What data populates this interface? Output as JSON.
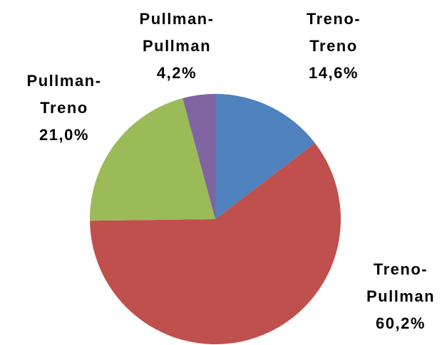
{
  "chart_data": {
    "type": "pie",
    "categories": [
      "Treno-Treno",
      "Treno-Pullman",
      "Pullman-Treno",
      "Pullman-Pullman"
    ],
    "values": [
      14.6,
      60.2,
      21.0,
      4.2
    ],
    "value_labels": [
      "14,6%",
      "60,2%",
      "21,0%",
      "4,2%"
    ],
    "colors": [
      "#4f81bd",
      "#c0504d",
      "#9bbb59",
      "#8064a2"
    ]
  }
}
